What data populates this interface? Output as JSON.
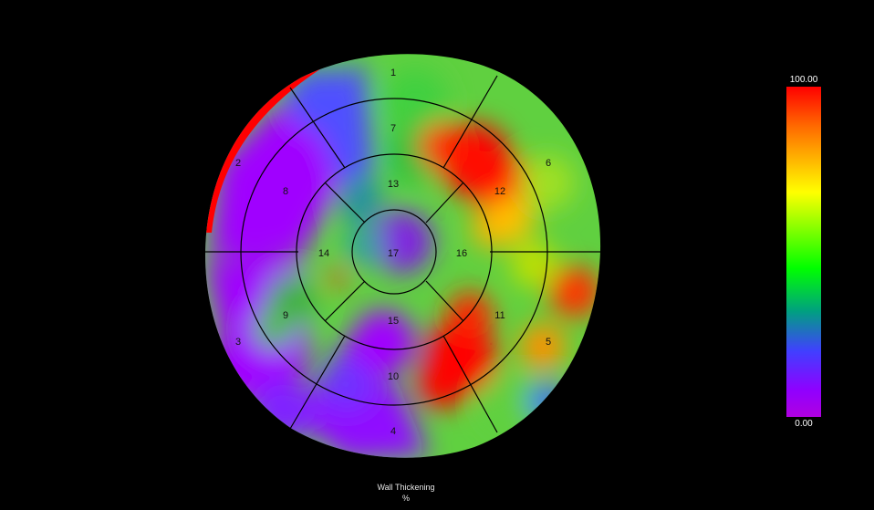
{
  "segments": [
    {
      "id": "1",
      "label": "1"
    },
    {
      "id": "2",
      "label": "2"
    },
    {
      "id": "3",
      "label": "3"
    },
    {
      "id": "4",
      "label": "4"
    },
    {
      "id": "5",
      "label": "5"
    },
    {
      "id": "6",
      "label": "6"
    },
    {
      "id": "7",
      "label": "7"
    },
    {
      "id": "8",
      "label": "8"
    },
    {
      "id": "9",
      "label": "9"
    },
    {
      "id": "10",
      "label": "10"
    },
    {
      "id": "11",
      "label": "11"
    },
    {
      "id": "12",
      "label": "12"
    },
    {
      "id": "13",
      "label": "13"
    },
    {
      "id": "14",
      "label": "14"
    },
    {
      "id": "15",
      "label": "15"
    },
    {
      "id": "16",
      "label": "16"
    },
    {
      "id": "17",
      "label": "17"
    }
  ],
  "caption": {
    "title": "Wall Thickening",
    "unit": "%"
  },
  "colorbar": {
    "max_label": "100.00",
    "min_label": "0.00"
  },
  "colors": {
    "red": "#ff0000",
    "yellow": "#ffff00",
    "green": "#00ff00",
    "blue": "#4040ff",
    "purple": "#a000ff"
  }
}
